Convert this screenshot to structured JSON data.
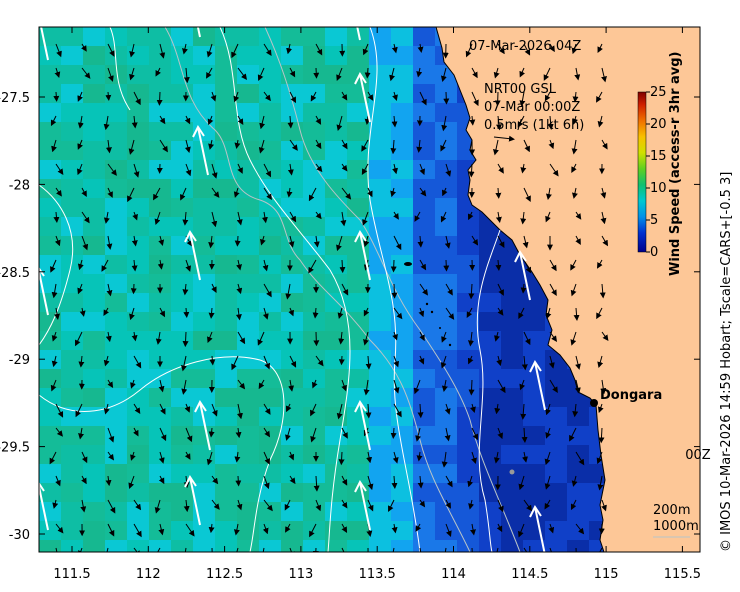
{
  "title": "07-Mar-2026 04Z",
  "legend": {
    "line1": "NRT00 GSL",
    "line2": "07-Mar 00:00Z",
    "scale": "0.5m/s (1kt 6h)"
  },
  "colorbar": {
    "label": "Wind Speed (access-r 3hr avg)",
    "ticks": [
      "25",
      "20",
      "15",
      "10",
      "5",
      "0"
    ]
  },
  "axes": {
    "x_ticks": [
      "111.5",
      "112",
      "112.5",
      "113",
      "113.5",
      "114",
      "114.5",
      "115",
      "115.5"
    ],
    "y_ticks": [
      "-27.5",
      "-28",
      "-28.5",
      "-29",
      "-29.5",
      "-30"
    ]
  },
  "place": {
    "name": "Dongara"
  },
  "partial_label": "00Z",
  "depth_legend": {
    "c200": "200m",
    "c1000": "1000m"
  },
  "credit": "© IMOS 10-Mar-2026 14:59 Hobart; Tscale=CARS+[-0.5 3]",
  "colors": {
    "land": "#fdc797",
    "accent": "#000000"
  }
}
